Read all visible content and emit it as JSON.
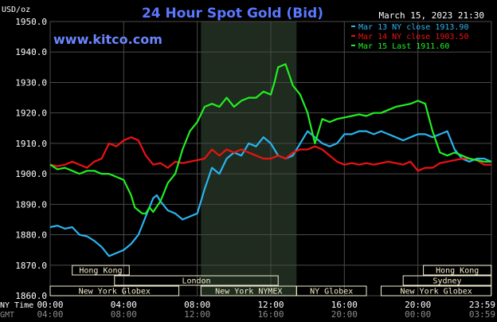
{
  "header": {
    "title": "24 Hour Spot Gold (Bid)",
    "datetime": "March 15, 2023 21:30",
    "units": "USD/oz",
    "website": "www.kitco.com"
  },
  "colors": {
    "background": "#000000",
    "title": "#5a78ff",
    "website": "#6a86ff",
    "grid": "#4a4a4a",
    "axis_text": "#ffffff",
    "gmt_text": "#8c8c8c",
    "highlight_band": "#1e2b1e",
    "session_fill": "#f3efcf",
    "series_mar13": "#2ab4ee",
    "series_mar14": "#ee1212",
    "series_mar15": "#22ee22"
  },
  "chart_data": {
    "type": "line",
    "title": "24 Hour Spot Gold (Bid)",
    "xlabel": "",
    "ylabel": "USD/oz",
    "ylim": [
      1860,
      1950
    ],
    "y_ticks": [
      "1950.0",
      "1940.0",
      "1930.0",
      "1920.0",
      "1910.0",
      "1900.0",
      "1890.0",
      "1880.0",
      "1870.0",
      "1860.0"
    ],
    "x_range_hours": [
      0,
      24
    ],
    "x_ticks_ny": [
      "00:00",
      "04:00",
      "08:00",
      "12:00",
      "16:00",
      "20:00",
      "23:59"
    ],
    "x_ticks_gmt": [
      "04:00",
      "08:00",
      "12:00",
      "16:00",
      "20:00",
      "00:00",
      "03:59"
    ],
    "x_axis_row_labels": {
      "ny": "NY Time",
      "gmt": "GMT"
    },
    "grid": true,
    "legend_position": "top-right",
    "highlight_hours": [
      8.2,
      13.4
    ],
    "series": [
      {
        "name": "Mar 13 NY close 1913.90",
        "color": "#2ab4ee",
        "x": [
          0,
          0.4,
          0.8,
          1.2,
          1.6,
          2.0,
          2.4,
          2.8,
          3.2,
          3.6,
          4.0,
          4.4,
          4.8,
          5.2,
          5.6,
          5.8,
          6.0,
          6.4,
          6.8,
          7.2,
          7.6,
          8.0,
          8.4,
          8.8,
          9.2,
          9.6,
          10.0,
          10.4,
          10.8,
          11.2,
          11.6,
          12.0,
          12.4,
          12.8,
          13.2,
          13.6,
          14.0,
          14.4,
          14.8,
          15.2,
          15.6,
          16.0,
          16.4,
          16.8,
          17.2,
          17.6,
          18.0,
          18.4,
          18.8,
          19.2,
          19.6,
          20.0,
          20.4,
          20.8,
          21.2,
          21.6,
          22.0,
          22.4,
          22.8,
          23.2,
          23.6,
          23.99
        ],
        "values": [
          1882.5,
          1883,
          1882,
          1882.5,
          1880,
          1879.5,
          1878,
          1876,
          1873,
          1874,
          1875,
          1877,
          1880,
          1886,
          1892,
          1893,
          1891,
          1888,
          1887,
          1885,
          1886,
          1887,
          1895,
          1902,
          1900,
          1905,
          1907,
          1906,
          1910,
          1909,
          1912,
          1910,
          1906,
          1905,
          1906,
          1910,
          1914,
          1912,
          1910,
          1909,
          1910,
          1913,
          1913,
          1914,
          1914,
          1913,
          1914,
          1913,
          1912,
          1911,
          1912,
          1913,
          1913,
          1912,
          1913,
          1914,
          1908,
          1905,
          1904,
          1905,
          1905,
          1904
        ]
      },
      {
        "name": "Mar 14 NY close 1903.50",
        "color": "#ee1212",
        "x": [
          0,
          0.4,
          0.8,
          1.2,
          1.6,
          2.0,
          2.4,
          2.8,
          3.2,
          3.6,
          4.0,
          4.4,
          4.8,
          5.2,
          5.6,
          6.0,
          6.4,
          6.8,
          7.2,
          7.6,
          8.0,
          8.4,
          8.8,
          9.2,
          9.6,
          10.0,
          10.4,
          10.8,
          11.2,
          11.6,
          12.0,
          12.4,
          12.8,
          13.2,
          13.6,
          14.0,
          14.4,
          14.8,
          15.2,
          15.6,
          16.0,
          16.4,
          16.8,
          17.2,
          17.6,
          18.0,
          18.4,
          18.8,
          19.2,
          19.6,
          20.0,
          20.4,
          20.8,
          21.2,
          21.6,
          22.0,
          22.4,
          22.8,
          23.2,
          23.6,
          23.99
        ],
        "values": [
          1903,
          1902.5,
          1903,
          1904,
          1903,
          1902,
          1904,
          1905,
          1910,
          1909,
          1911,
          1912,
          1911,
          1906,
          1903,
          1903.5,
          1902,
          1904,
          1903.5,
          1904,
          1904.5,
          1905,
          1908,
          1906,
          1908,
          1907,
          1908,
          1907,
          1906,
          1905,
          1905,
          1906,
          1905,
          1907,
          1908,
          1908,
          1909,
          1908,
          1906,
          1904,
          1903,
          1903.5,
          1903,
          1903.5,
          1903,
          1903.5,
          1904,
          1903.5,
          1903,
          1904,
          1901,
          1902,
          1902,
          1903.5,
          1904,
          1904.5,
          1905,
          1905,
          1904.5,
          1903,
          1903
        ]
      },
      {
        "name": "Mar 15 Last 1911.60",
        "color": "#22ee22",
        "x": [
          0,
          0.4,
          0.8,
          1.2,
          1.6,
          2.0,
          2.4,
          2.8,
          3.2,
          3.6,
          4.0,
          4.4,
          4.6,
          4.8,
          5.0,
          5.2,
          5.4,
          5.6,
          6.0,
          6.4,
          6.8,
          7.2,
          7.6,
          8.0,
          8.4,
          8.8,
          9.2,
          9.6,
          10.0,
          10.4,
          10.8,
          11.2,
          11.6,
          12.0,
          12.2,
          12.4,
          12.8,
          13.2,
          13.6,
          14.0,
          14.4,
          14.8,
          15.2,
          15.6,
          16.0,
          16.4,
          16.8,
          17.2,
          17.6,
          18.0,
          18.4,
          18.8,
          19.2,
          19.6,
          20.0,
          20.4,
          20.8,
          21.2,
          21.6,
          22.0,
          22.4,
          22.8,
          23.2,
          23.6,
          23.99
        ],
        "values": [
          1903,
          1901.5,
          1902,
          1901,
          1900,
          1901,
          1901,
          1900,
          1900,
          1899,
          1898,
          1893,
          1889,
          1888,
          1887,
          1887,
          1889,
          1887.5,
          1891,
          1897,
          1900,
          1908,
          1914,
          1917,
          1922,
          1923,
          1922,
          1925,
          1922,
          1924,
          1925,
          1925,
          1927,
          1926,
          1930,
          1935,
          1936,
          1929,
          1926,
          1920,
          1910,
          1918,
          1917,
          1918,
          1918.5,
          1919,
          1919.5,
          1919,
          1920,
          1920,
          1921,
          1922,
          1922.5,
          1923,
          1924,
          1923,
          1914,
          1907,
          1906,
          1907,
          1906,
          1905,
          1904.5,
          1904,
          1904
        ]
      }
    ]
  },
  "sessions": [
    {
      "label": "Hong Kong",
      "start": 1.2,
      "end": 4.3,
      "row": 0
    },
    {
      "label": "London",
      "start": 3.5,
      "end": 12.4,
      "row": 1
    },
    {
      "label": "New York Globex",
      "start": 0,
      "end": 7.0,
      "row": 2
    },
    {
      "label": "New York NYMEX",
      "start": 8.2,
      "end": 13.4,
      "row": 2
    },
    {
      "label": "NY Globex",
      "start": 13.4,
      "end": 17.2,
      "row": 2
    },
    {
      "label": "Hong Kong",
      "start": 20.3,
      "end": 23.99,
      "row": 0
    },
    {
      "label": "Sydney",
      "start": 19.2,
      "end": 23.99,
      "row": 1
    },
    {
      "label": "New York Globex",
      "start": 18.0,
      "end": 23.99,
      "row": 2
    }
  ]
}
